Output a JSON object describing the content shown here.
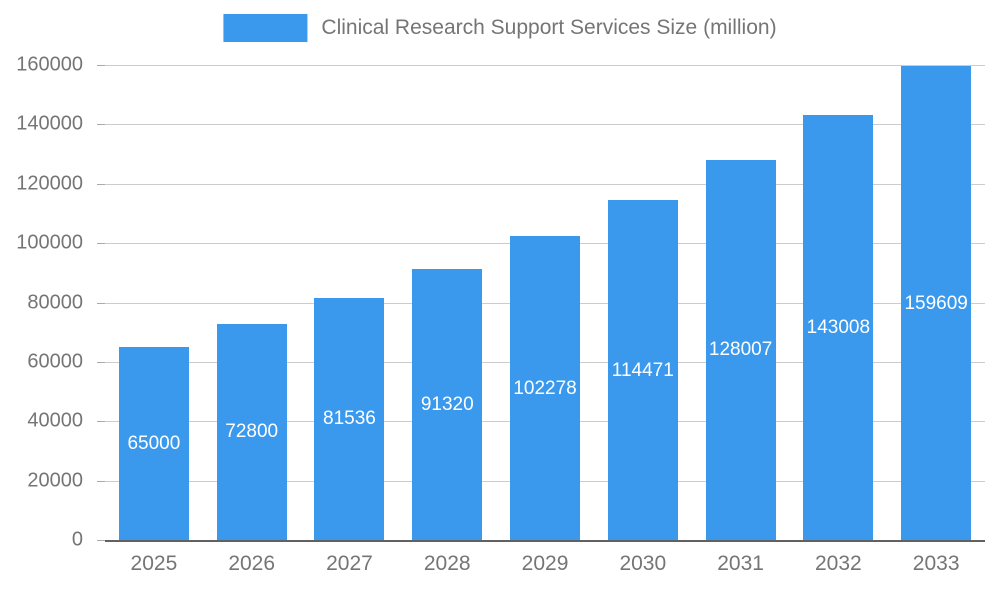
{
  "chart_data": {
    "type": "bar",
    "title": "Clinical Research Support Services Size (million)",
    "categories": [
      "2025",
      "2026",
      "2027",
      "2028",
      "2029",
      "2030",
      "2031",
      "2032",
      "2033"
    ],
    "values": [
      65000,
      72800,
      81536,
      91320,
      102278,
      114471,
      128007,
      143008,
      159609
    ],
    "xlabel": "",
    "ylabel": "",
    "ylim": [
      0,
      160000
    ],
    "ytick_step": 20000,
    "yticks": [
      0,
      20000,
      40000,
      60000,
      80000,
      100000,
      120000,
      140000,
      160000
    ],
    "grid": true,
    "legend_position": "top-center",
    "bar_color": "#3a99ed",
    "value_label_color": "#ffffff",
    "axis_text_color": "#757575",
    "gridline_color": "#cccccc",
    "axis_line_color": "#616161"
  }
}
